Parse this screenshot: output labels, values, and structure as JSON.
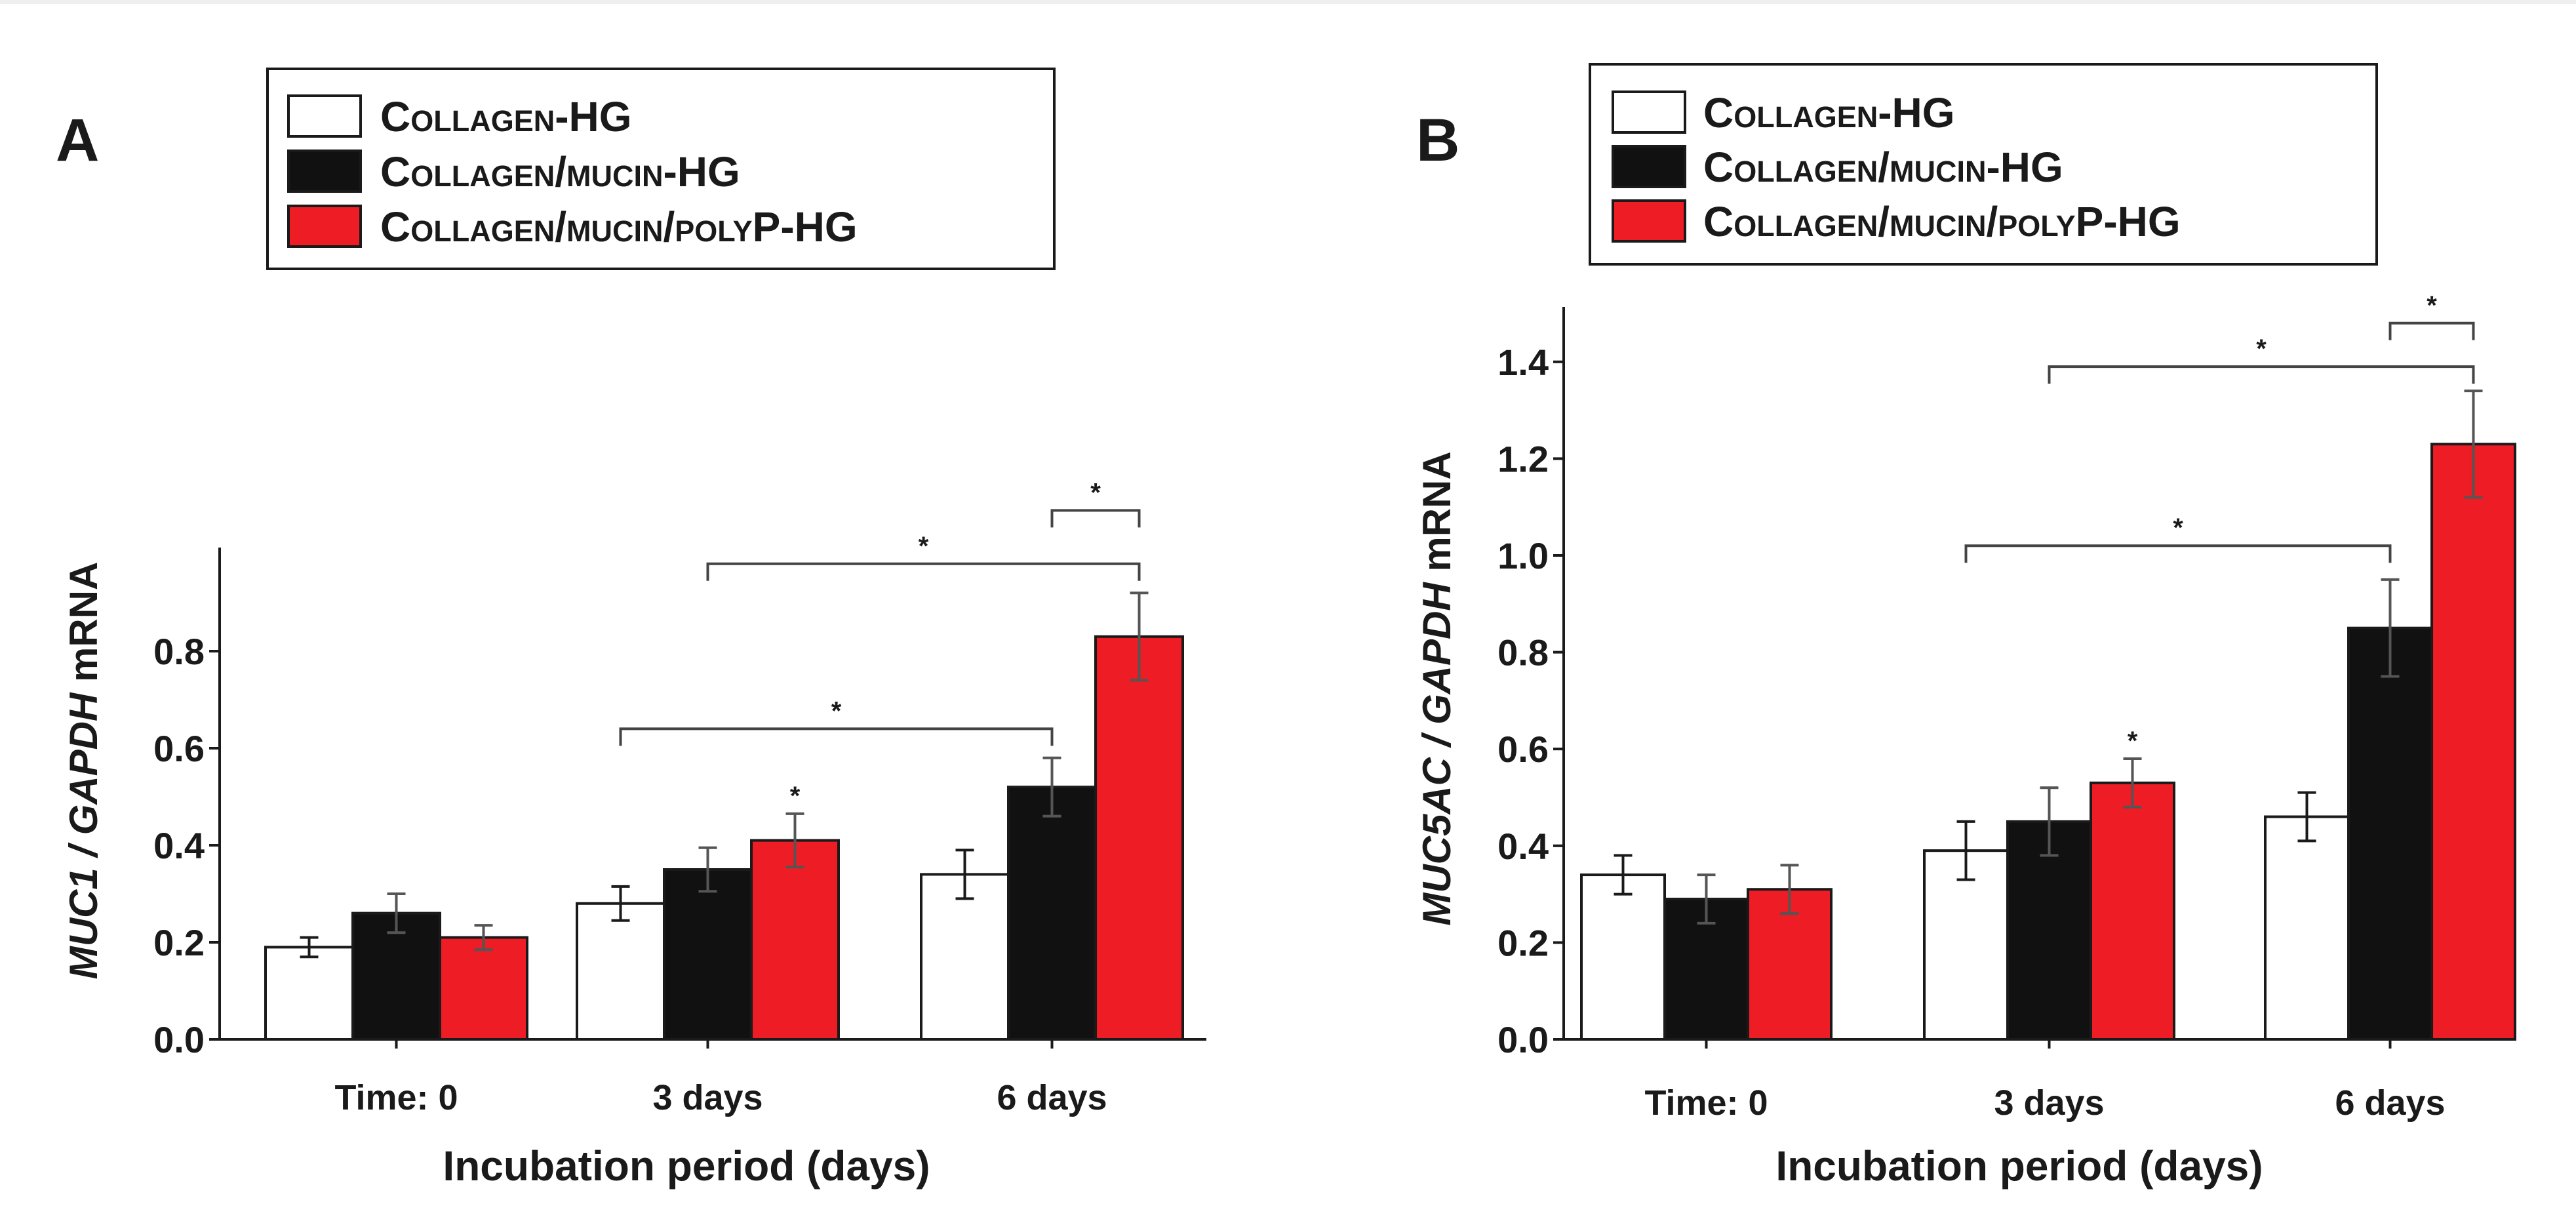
{
  "chart_data": [
    {
      "panel": "A",
      "type": "bar",
      "categories": [
        "Time: 0",
        "3 days",
        "6 days"
      ],
      "series": [
        {
          "name": "Collagen-HG",
          "color": "#ffffff",
          "values": [
            0.19,
            0.28,
            0.34
          ],
          "errors": [
            0.02,
            0.035,
            0.05
          ]
        },
        {
          "name": "Collagen/mucin-HG",
          "color": "#111111",
          "values": [
            0.26,
            0.35,
            0.52
          ],
          "errors": [
            0.04,
            0.045,
            0.06
          ]
        },
        {
          "name": "Collagen/mucin/polyP-HG",
          "color": "#ee1c24",
          "values": [
            0.21,
            0.41,
            0.83
          ],
          "errors": [
            0.025,
            0.055,
            0.09
          ]
        }
      ],
      "ylabel_italic": "MUC1 / GAPDH",
      "ylabel_plain": " mRNA",
      "xlabel": "Incubation period (days)",
      "ylim": [
        0,
        1.0
      ],
      "yticks": [
        "0.0",
        "0.2",
        "0.4",
        "0.6",
        "0.8"
      ],
      "star_over": [
        {
          "category": 1,
          "series": 2,
          "text": "*"
        }
      ],
      "brackets": [
        {
          "from": [
            1,
            0
          ],
          "to": [
            2,
            1
          ],
          "y": 0.64,
          "text": "*"
        },
        {
          "from": [
            1,
            1
          ],
          "to": [
            2,
            2
          ],
          "y": 0.98,
          "text": "*"
        },
        {
          "from": [
            2,
            1
          ],
          "to": [
            2,
            2
          ],
          "y": 1.09,
          "text": "*"
        }
      ]
    },
    {
      "panel": "B",
      "type": "bar",
      "categories": [
        "Time: 0",
        "3 days",
        "6 days"
      ],
      "series": [
        {
          "name": "Collagen-HG",
          "color": "#ffffff",
          "values": [
            0.34,
            0.39,
            0.46
          ],
          "errors": [
            0.04,
            0.06,
            0.05
          ]
        },
        {
          "name": "Collagen/mucin-HG",
          "color": "#111111",
          "values": [
            0.29,
            0.45,
            0.85
          ],
          "errors": [
            0.05,
            0.07,
            0.1
          ]
        },
        {
          "name": "Collagen/mucin/polyP-HG",
          "color": "#ee1c24",
          "values": [
            0.31,
            0.53,
            1.23
          ],
          "errors": [
            0.05,
            0.05,
            0.11
          ]
        }
      ],
      "ylabel_italic": "MUC5AC / GAPDH",
      "ylabel_plain": " mRNA",
      "xlabel": "Incubation period (days)",
      "ylim": [
        0,
        1.5
      ],
      "yticks": [
        "0.0",
        "0.2",
        "0.4",
        "0.6",
        "0.8",
        "1.0",
        "1.2",
        "1.4"
      ],
      "star_over": [
        {
          "category": 1,
          "series": 2,
          "text": "*"
        }
      ],
      "brackets": [
        {
          "from": [
            1,
            0
          ],
          "to": [
            2,
            1
          ],
          "y": 1.02,
          "text": "*"
        },
        {
          "from": [
            1,
            1
          ],
          "to": [
            2,
            2
          ],
          "y": 1.39,
          "text": "*"
        },
        {
          "from": [
            2,
            1
          ],
          "to": [
            2,
            2
          ],
          "y": 1.48,
          "text": "*"
        }
      ]
    }
  ]
}
